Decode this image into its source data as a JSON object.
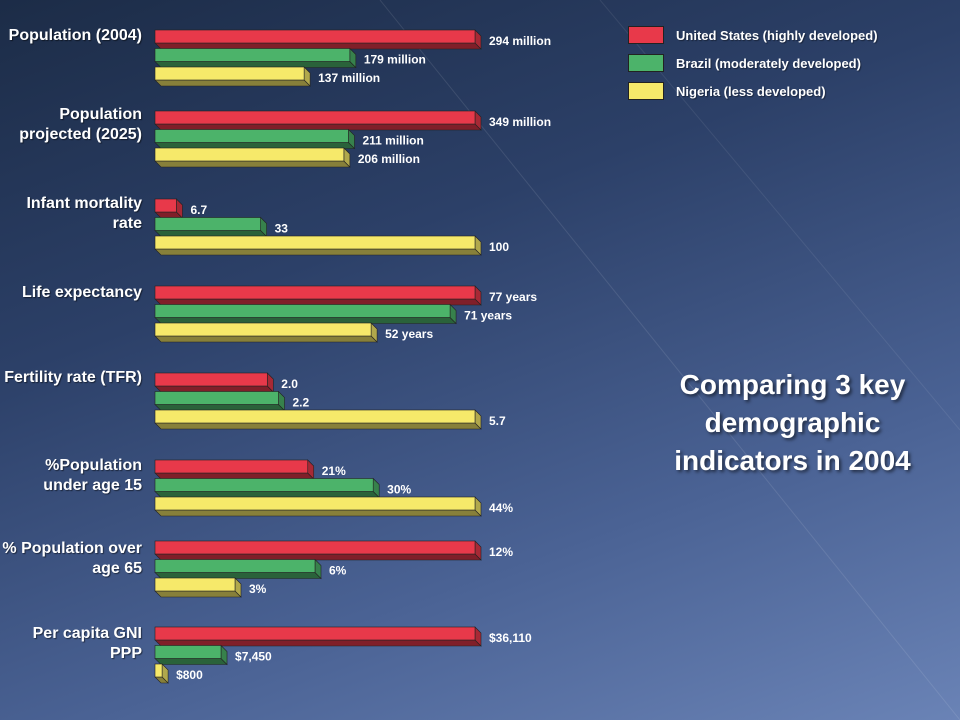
{
  "colors": {
    "us": "#e8394a",
    "brazil": "#4cb36a",
    "nigeria": "#f6e96a"
  },
  "legend": [
    {
      "name": "United States (highly developed)",
      "color": "#e8394a"
    },
    {
      "name": "Brazil (moderately developed)",
      "color": "#4cb36a"
    },
    {
      "name": "Nigeria (less developed)",
      "color": "#f6e96a"
    }
  ],
  "title": "Comparing 3 key demographic indicators in 2004",
  "chart_data": {
    "type": "bar",
    "orientation": "horizontal",
    "title": "Comparing 3 key demographic indicators in 2004",
    "series_names": [
      "United States (highly developed)",
      "Brazil (moderately developed)",
      "Nigeria (less developed)"
    ],
    "legend_position": "top-right",
    "grid": false,
    "groups": [
      {
        "label": "Population (2004)",
        "values": [
          294,
          179,
          137
        ],
        "labels": [
          "294 million",
          "179 million",
          "137 million"
        ]
      },
      {
        "label": "Population projected (2025)",
        "values": [
          349,
          211,
          206
        ],
        "labels": [
          "349 million",
          "211 million",
          "206 million"
        ]
      },
      {
        "label": "Infant mortality rate",
        "values": [
          6.7,
          33,
          100
        ],
        "labels": [
          "6.7",
          "33",
          "100"
        ]
      },
      {
        "label": "Life expectancy",
        "values": [
          77,
          71,
          52
        ],
        "labels": [
          "77 years",
          "71 years",
          "52 years"
        ]
      },
      {
        "label": "Fertility rate (TFR)",
        "values": [
          2.0,
          2.2,
          5.7
        ],
        "labels": [
          "2.0",
          "2.2",
          "5.7"
        ]
      },
      {
        "label": "%Population under age 15",
        "values": [
          21,
          30,
          44
        ],
        "labels": [
          "21%",
          "30%",
          "44%"
        ]
      },
      {
        "label": "% Population over age 65",
        "values": [
          12,
          6,
          3
        ],
        "labels": [
          "12%",
          "6%",
          "3%"
        ]
      },
      {
        "label": "Per capita GNI PPP",
        "values": [
          36110,
          7450,
          800
        ],
        "labels": [
          "$36,110",
          "$7,450",
          "$800"
        ]
      }
    ]
  }
}
